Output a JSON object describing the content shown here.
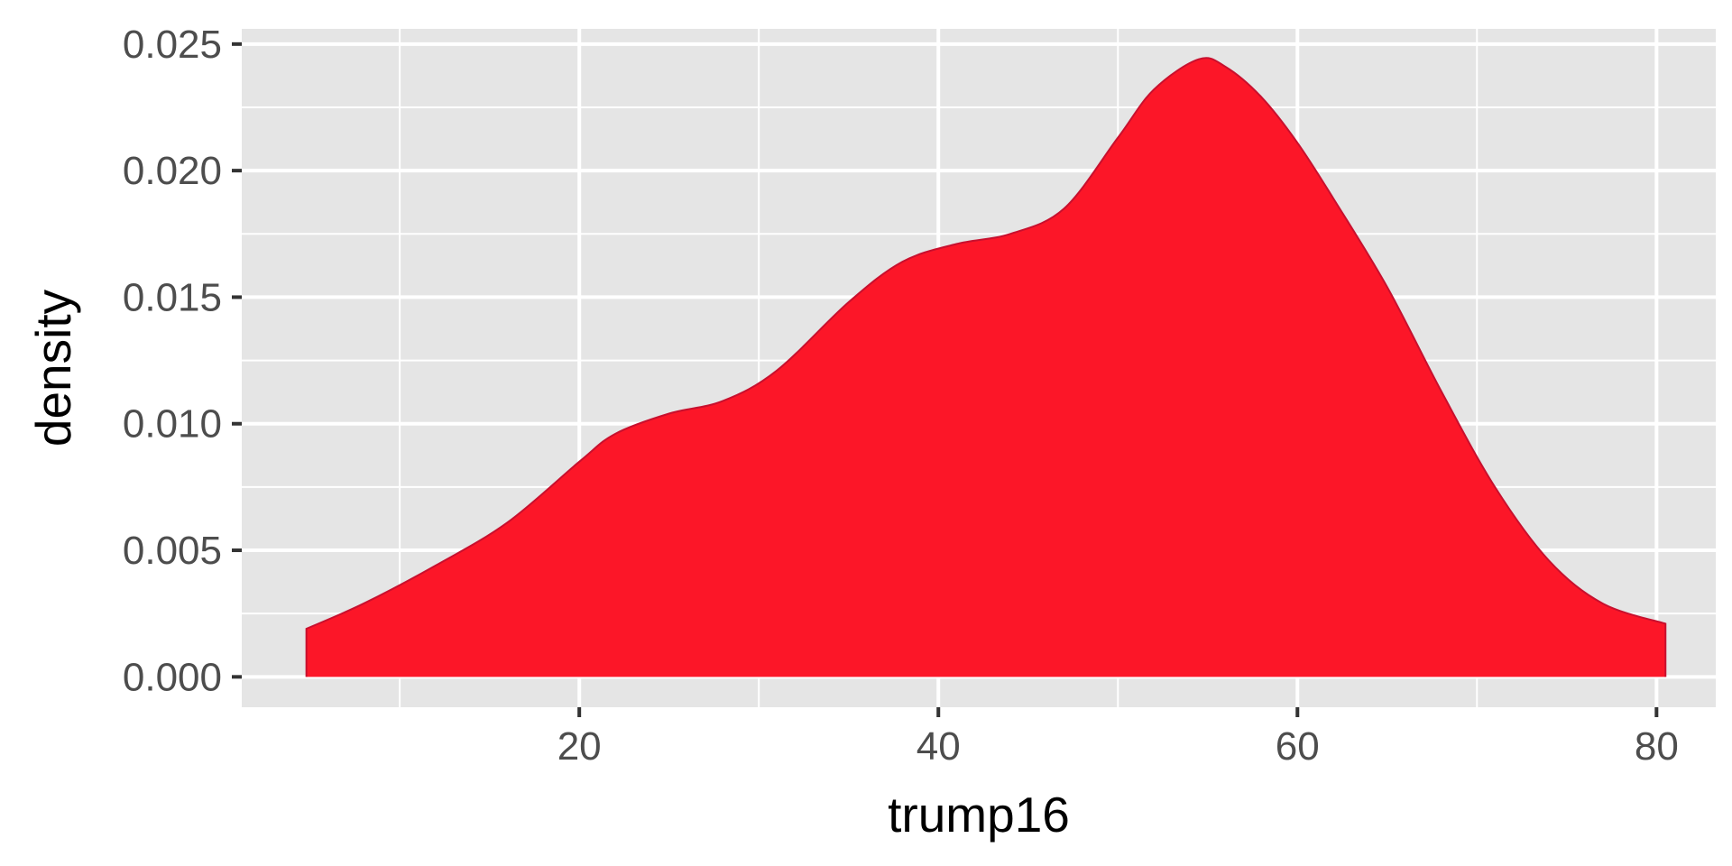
{
  "chart_data": {
    "type": "area",
    "subtype": "density",
    "xlabel": "trump16",
    "ylabel": "density",
    "xlim": [
      1.2,
      83.3
    ],
    "ylim": [
      -0.0012,
      0.0256
    ],
    "x_ticks": [
      20,
      40,
      60,
      80
    ],
    "x_tick_labels": [
      "20",
      "40",
      "60",
      "80"
    ],
    "x_minor_ticks": [
      10,
      30,
      50,
      70
    ],
    "y_ticks": [
      0,
      0.005,
      0.01,
      0.015,
      0.02,
      0.025
    ],
    "y_tick_labels": [
      "0.000",
      "0.005",
      "0.010",
      "0.015",
      "0.020",
      "0.025"
    ],
    "y_minor_ticks": [
      0.0025,
      0.0075,
      0.0125,
      0.0175,
      0.0225
    ],
    "grid": true,
    "panel_background": "#e5e5e5",
    "grid_color": "#ffffff",
    "fill_color": "#fc1628",
    "line_color": "#c8102e",
    "legend": "none",
    "series": [
      {
        "x": [
          4.8,
          8,
          12,
          16,
          20,
          22,
          25,
          28,
          31,
          35,
          38,
          41,
          44,
          47,
          50,
          52,
          54.5,
          56,
          58,
          60,
          62,
          65,
          68,
          71,
          74,
          77,
          80.5
        ],
        "values": [
          0.0019,
          0.0029,
          0.0044,
          0.0061,
          0.0085,
          0.0096,
          0.0104,
          0.0109,
          0.0121,
          0.0148,
          0.0164,
          0.0171,
          0.0175,
          0.0185,
          0.0213,
          0.0232,
          0.0244,
          0.0241,
          0.0229,
          0.0211,
          0.0189,
          0.0154,
          0.0113,
          0.0075,
          0.0046,
          0.0029,
          0.0021
        ]
      }
    ]
  }
}
